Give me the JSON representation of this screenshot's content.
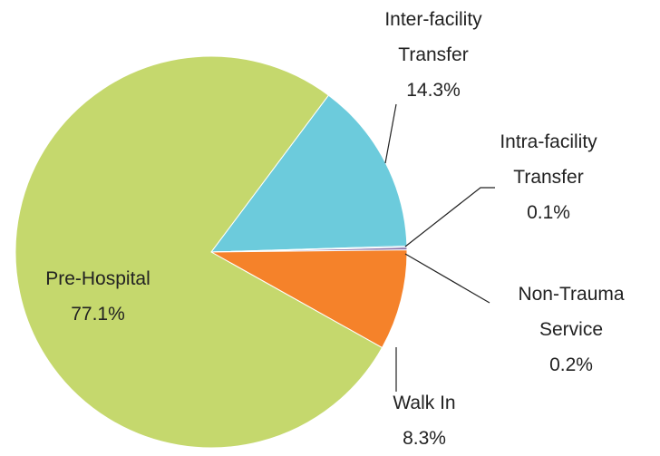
{
  "chart_data": {
    "type": "pie",
    "categories": [
      "Inter-facility Transfer",
      "Intra-facility Transfer",
      "Non-Trauma Service",
      "Walk In",
      "Pre-Hospital"
    ],
    "values": [
      14.3,
      0.1,
      0.2,
      8.3,
      77.1
    ],
    "value_labels": [
      "14.3%",
      "0.1%",
      "0.2%",
      "8.3%",
      "77.1%"
    ],
    "colors": [
      "#6ccbdc",
      "#4f81bd",
      "#8064a2",
      "#f5822a",
      "#c5d86d"
    ]
  }
}
